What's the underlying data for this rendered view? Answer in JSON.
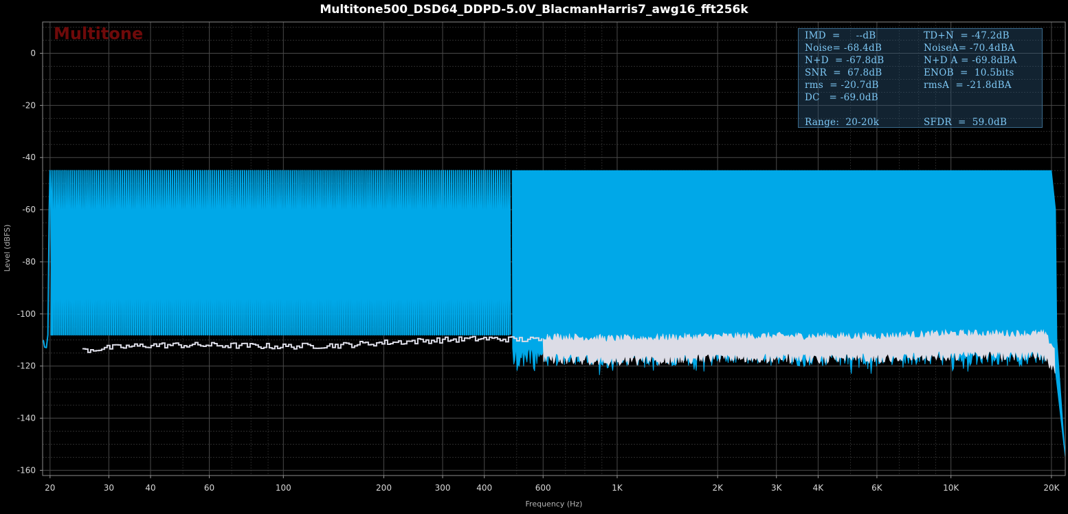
{
  "title": "Multitone500_DSD64_DDPD-5.0V_BlacmanHarris7_awg16_fft256k",
  "watermark": "Multitone",
  "stats": {
    "rows": [
      [
        "IMD  =     --dB",
        "TD+N  = -47.2dB"
      ],
      [
        "Noise= -68.4dB",
        "NoiseA= -70.4dBA"
      ],
      [
        "N+D  = -67.8dB",
        "N+D A = -69.8dBA"
      ],
      [
        "SNR  =  67.8dB",
        "ENOB  =  10.5bits"
      ],
      [
        "rms  = -20.7dB",
        "rmsA  = -21.8dBA"
      ],
      [
        "DC   = -69.0dB",
        ""
      ],
      [
        "",
        ""
      ],
      [
        "Range:  20-20k",
        "SFDR  =  59.0dB"
      ]
    ]
  },
  "colors": {
    "spectrum": "#00a8e8",
    "noise_floor": "#dcdce6",
    "grid": "#3c3c3c",
    "watermark": "#6e0a0a",
    "stats_text": "#7ec8f5"
  },
  "chart_data": {
    "type": "line",
    "xlabel": "Frequency (Hz)",
    "ylabel": "Level (dBFS)",
    "xscale": "log",
    "xlim": [
      19,
      22000
    ],
    "ylim": [
      -162,
      12
    ],
    "grid": true,
    "x_ticks": [
      20,
      30,
      40,
      60,
      100,
      200,
      300,
      400,
      600,
      1000,
      2000,
      3000,
      4000,
      6000,
      10000,
      20000
    ],
    "x_tick_labels": [
      "20",
      "30",
      "40",
      "60",
      "100",
      "200",
      "300",
      "400",
      "600",
      "1K",
      "2K",
      "3K",
      "4K",
      "6K",
      "10K",
      "20K"
    ],
    "y_ticks": [
      0,
      -20,
      -40,
      -60,
      -80,
      -100,
      -120,
      -140,
      -160
    ],
    "y_tick_labels": [
      "0",
      "-20",
      "-40",
      "-60",
      "-80",
      "-100",
      "-120",
      "-140",
      "-160"
    ],
    "series": [
      {
        "kind": "multitone_spectrum",
        "tone_level_db": -45,
        "tone_start_hz": 20,
        "tone_count": 500,
        "tones_resolved_until_hz": 480,
        "floor_range_db": [
          -118,
          -110
        ],
        "rolloff_start_hz": 20000,
        "rolloff_end": {
          "x": 22000,
          "y": -155
        },
        "color": "#00a8e8"
      },
      {
        "kind": "noise_floor",
        "points": [
          [
            25,
            -114
          ],
          [
            30,
            -113
          ],
          [
            40,
            -112
          ],
          [
            60,
            -112
          ],
          [
            100,
            -112.5
          ],
          [
            150,
            -112
          ],
          [
            200,
            -111
          ],
          [
            300,
            -110
          ],
          [
            400,
            -109.5
          ],
          [
            600,
            -110
          ],
          [
            1000,
            -111
          ],
          [
            2000,
            -110
          ],
          [
            3000,
            -110
          ],
          [
            6000,
            -110
          ],
          [
            10000,
            -109
          ],
          [
            19000,
            -109
          ],
          [
            20500,
            -115
          ]
        ],
        "spread_db": 5,
        "color": "#dcdce6"
      }
    ]
  }
}
